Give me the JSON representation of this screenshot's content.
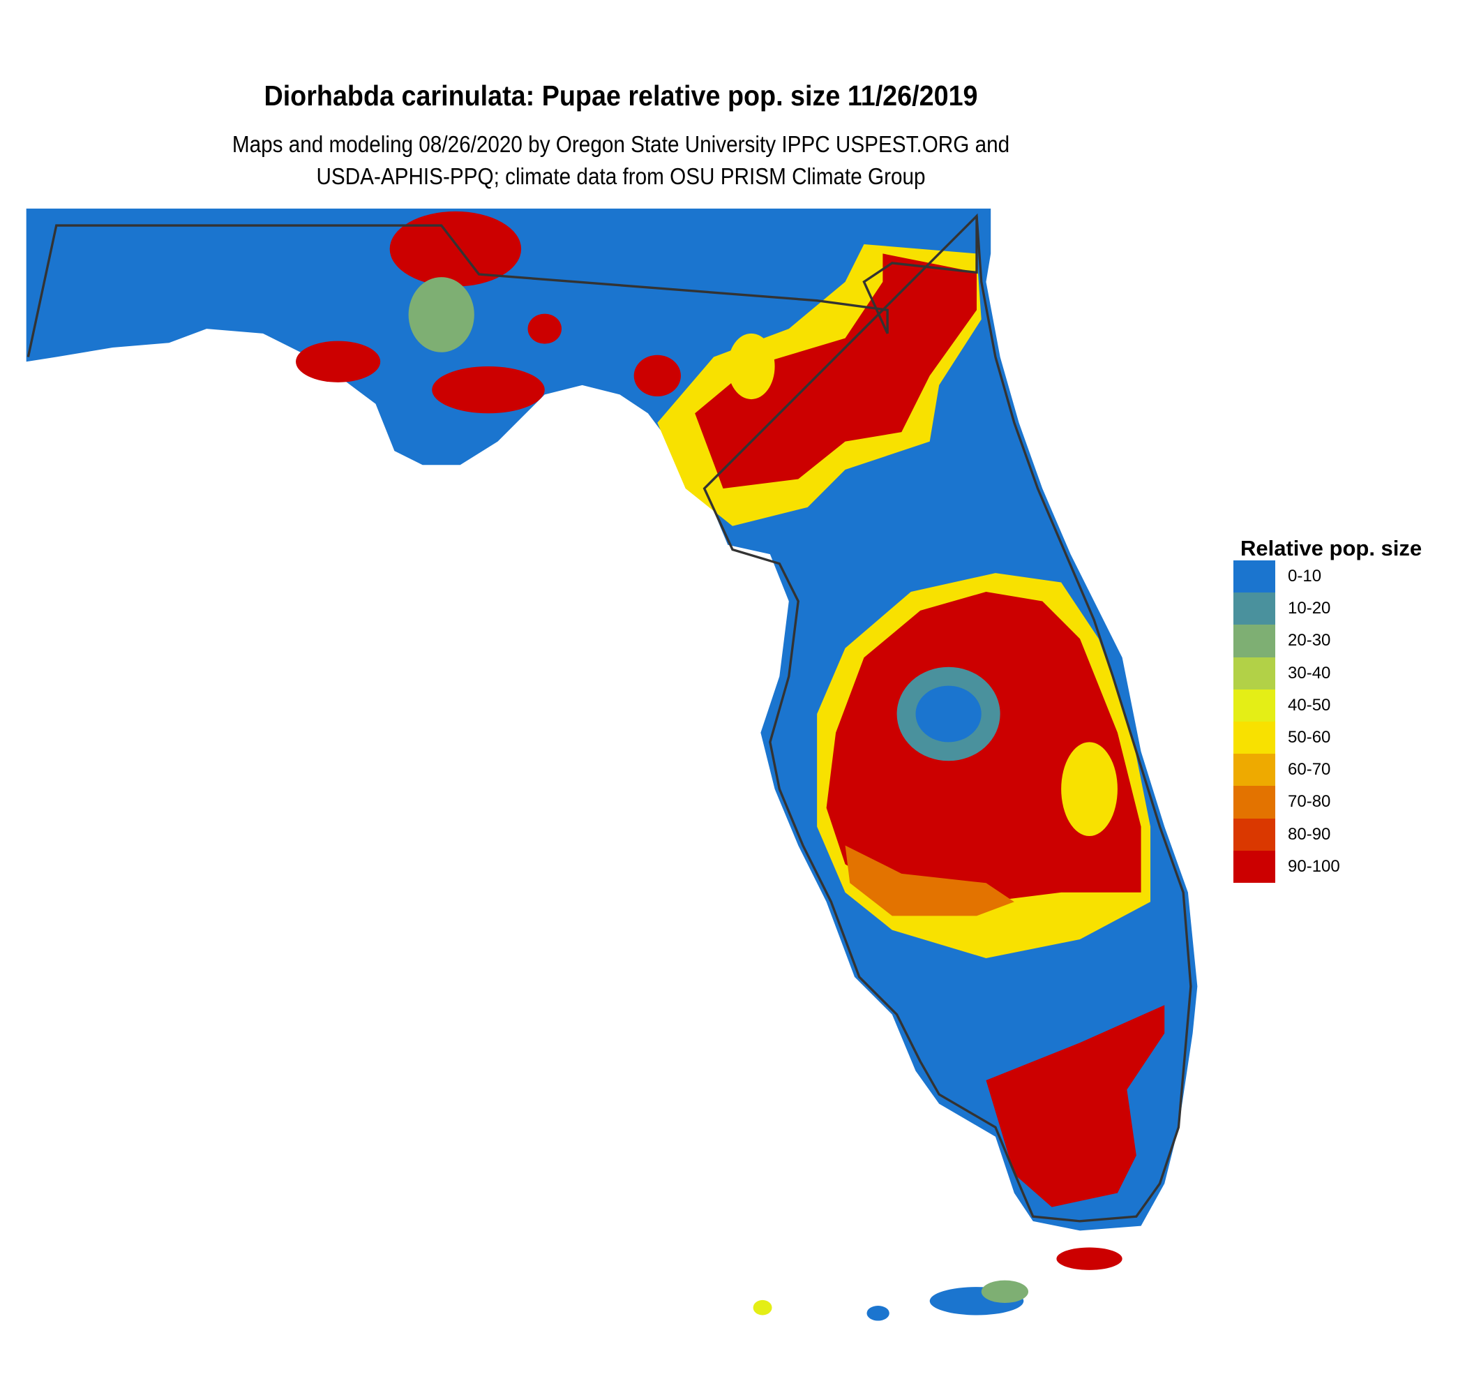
{
  "title": "Diorhabda carinulata: Pupae relative pop. size 11/26/2019",
  "subtitle_line1": "Maps and modeling 08/26/2020 by Oregon State University IPPC USPEST.ORG and",
  "subtitle_line2": "USDA-APHIS-PPQ; climate data from OSU PRISM Climate Group",
  "legend": {
    "title": "Relative pop. size",
    "items": [
      {
        "label": "0-10",
        "color": "#1B75CF"
      },
      {
        "label": "10-20",
        "color": "#4A919D"
      },
      {
        "label": "20-30",
        "color": "#7EAF73"
      },
      {
        "label": "30-40",
        "color": "#B2D147"
      },
      {
        "label": "40-50",
        "color": "#E4EE16"
      },
      {
        "label": "50-60",
        "color": "#F8E100"
      },
      {
        "label": "60-70",
        "color": "#EEAA00"
      },
      {
        "label": "70-80",
        "color": "#E37300"
      },
      {
        "label": "80-90",
        "color": "#DA3800"
      },
      {
        "label": "90-100",
        "color": "#CC0000"
      }
    ]
  },
  "map": {
    "region": "Florida",
    "boundary_color": "#333333"
  }
}
